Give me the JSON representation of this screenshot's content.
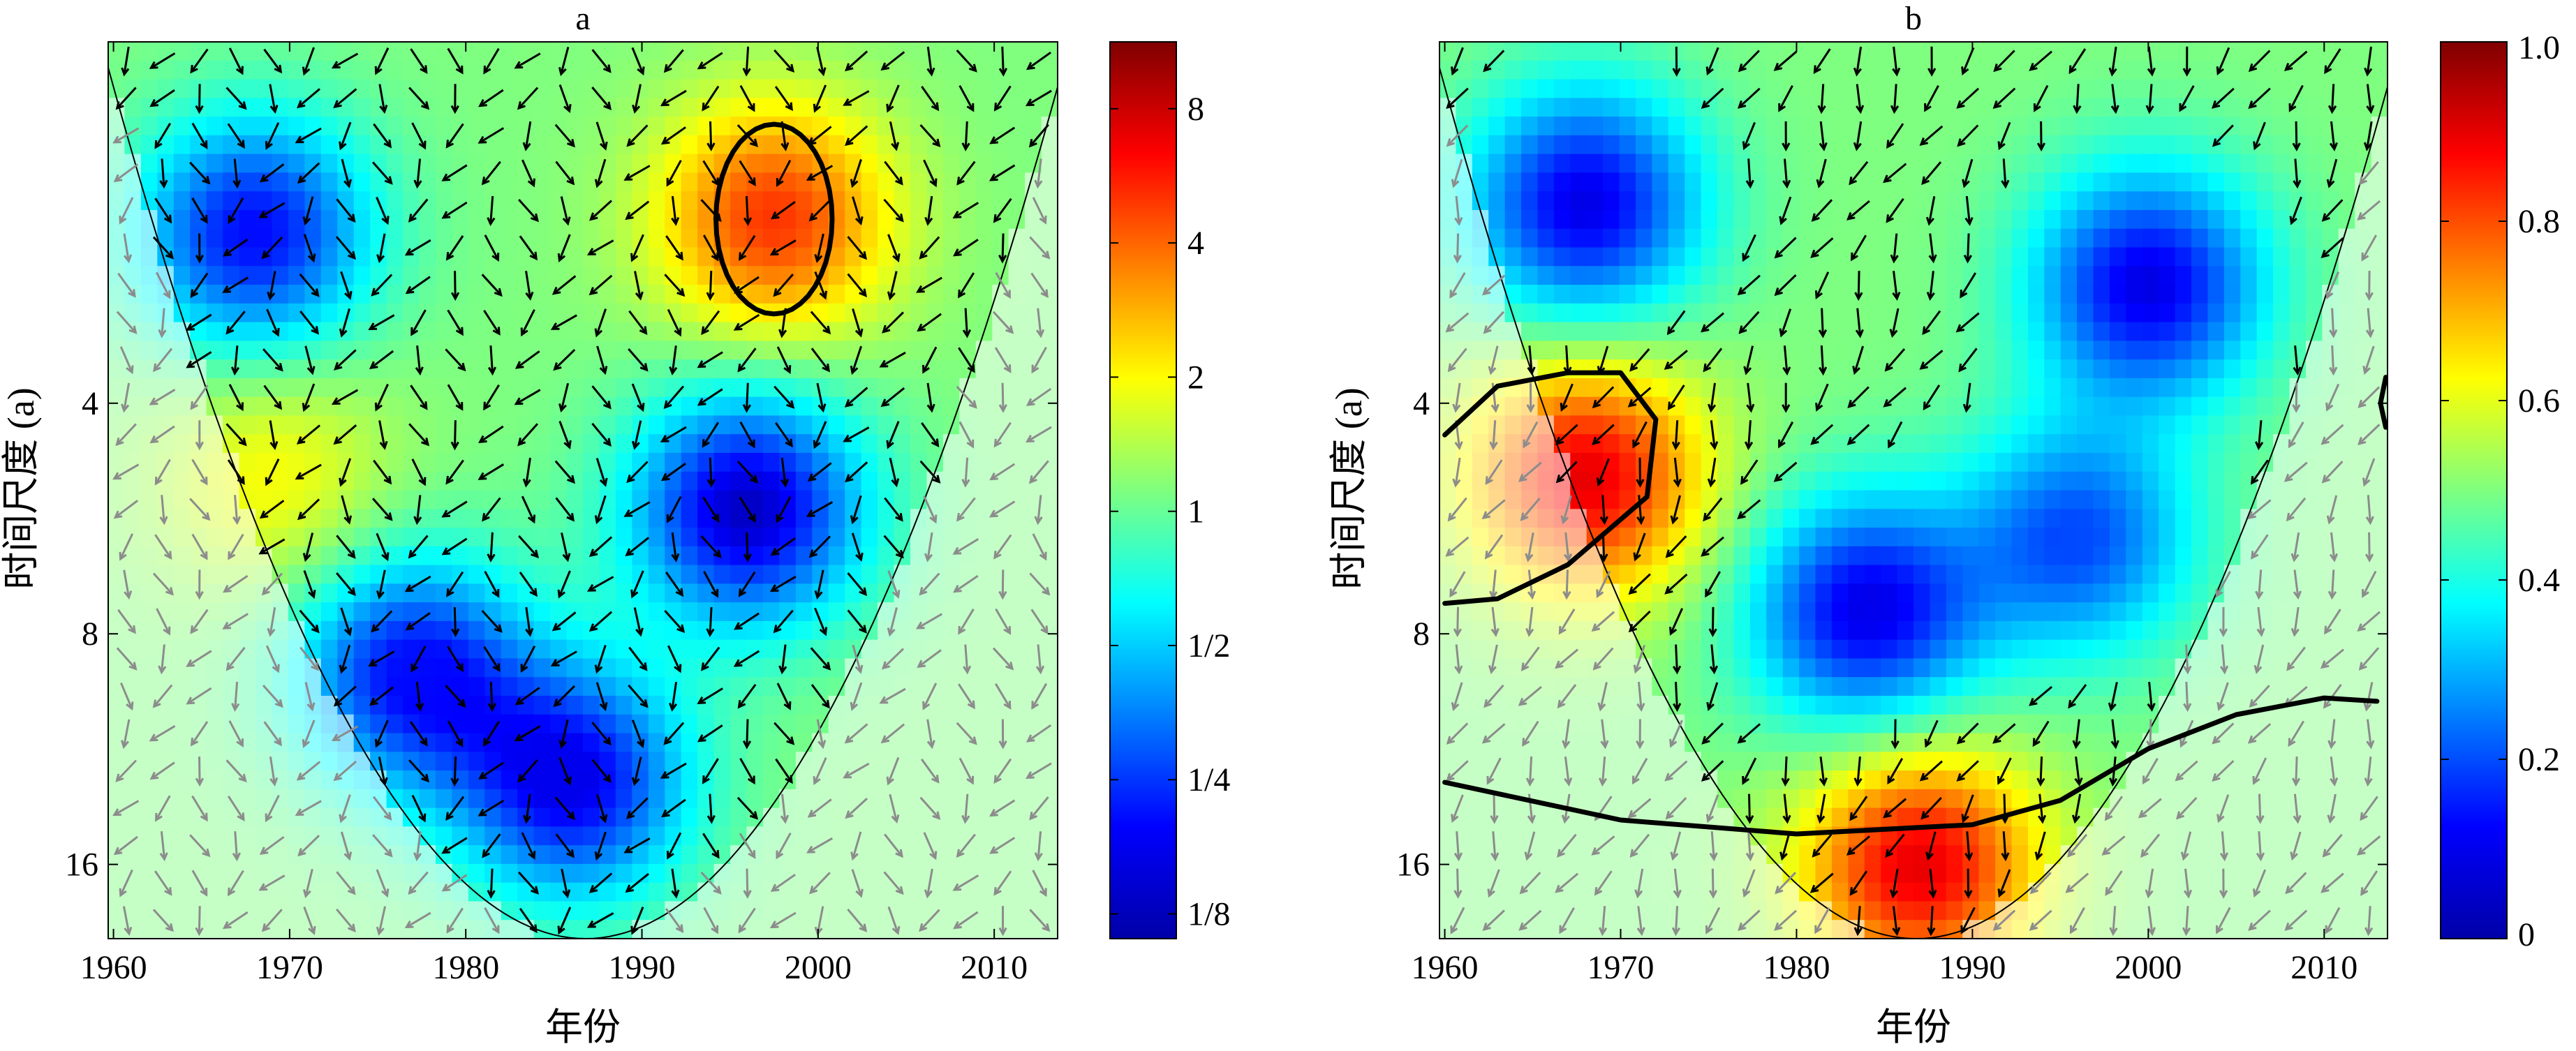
{
  "chart_data": [
    {
      "type": "heatmap",
      "panel": "a",
      "title": "a",
      "xlabel": "年份",
      "ylabel": "时间尺度 (a)",
      "x_ticks": [
        1960,
        1970,
        1980,
        1990,
        2000,
        2010
      ],
      "xlim": [
        1959.7,
        2013.6
      ],
      "y_ticks": [
        {
          "value": 4,
          "label": "4"
        },
        {
          "value": 8,
          "label": "8"
        },
        {
          "value": 16,
          "label": "16"
        }
      ],
      "ylim": [
        1.35,
        20
      ],
      "y_scale": "log2-reversed",
      "colorbar": {
        "scale": "log2",
        "ticks": [
          {
            "value": 8,
            "label": "8"
          },
          {
            "value": 4,
            "label": "4"
          },
          {
            "value": 2,
            "label": "2"
          },
          {
            "value": 1,
            "label": "1"
          },
          {
            "value": 0.5,
            "label": "1/2"
          },
          {
            "value": 0.25,
            "label": "1/4"
          },
          {
            "value": 0.125,
            "label": "1/8"
          }
        ],
        "range": [
          0.11,
          11.3
        ]
      },
      "features": [
        {
          "kind": "high",
          "x": 1997.5,
          "y": 2.3,
          "value": 5
        },
        {
          "kind": "high",
          "x": 1969,
          "y": 5.0,
          "value": 2
        },
        {
          "kind": "low",
          "x": 1996,
          "y": 5.5,
          "value": 0.15
        },
        {
          "kind": "low",
          "x": 1968,
          "y": 2.4,
          "value": 0.2
        },
        {
          "kind": "low",
          "x": 1986,
          "y": 12.5,
          "value": 0.18
        },
        {
          "kind": "low",
          "x": 1977,
          "y": 9.0,
          "value": 0.2
        }
      ],
      "significance_contours": [
        {
          "center_x": 1997.5,
          "center_y": 2.3,
          "x_halfwidth": 3.3,
          "y_factor": 1.33
        }
      ],
      "cone_of_influence": {
        "center_year": 1986.8,
        "top_period": 1.35,
        "bottom_period": 20
      }
    },
    {
      "type": "heatmap",
      "panel": "b",
      "title": "b",
      "xlabel": "年份",
      "ylabel": "时间尺度 (a)",
      "x_ticks": [
        1960,
        1970,
        1980,
        1990,
        2000,
        2010
      ],
      "xlim": [
        1959.7,
        2013.6
      ],
      "y_ticks": [
        {
          "value": 4,
          "label": "4"
        },
        {
          "value": 8,
          "label": "8"
        },
        {
          "value": 16,
          "label": "16"
        }
      ],
      "ylim": [
        1.35,
        20
      ],
      "y_scale": "log2-reversed",
      "colorbar": {
        "scale": "linear",
        "ticks": [
          {
            "value": 1.0,
            "label": "1.0"
          },
          {
            "value": 0.8,
            "label": "0.8"
          },
          {
            "value": 0.6,
            "label": "0.6"
          },
          {
            "value": 0.4,
            "label": "0.4"
          },
          {
            "value": 0.2,
            "label": "0.2"
          },
          {
            "value": 0,
            "label": "0"
          }
        ],
        "range": [
          0,
          1.0
        ]
      },
      "features": [
        {
          "kind": "high",
          "x": 1968,
          "y": 5.0,
          "value": 0.9
        },
        {
          "kind": "high",
          "x": 1987,
          "y": 16.0,
          "value": 0.9
        },
        {
          "kind": "low",
          "x": 1968,
          "y": 2.2,
          "value": 0.1
        },
        {
          "kind": "low",
          "x": 2000,
          "y": 2.8,
          "value": 0.1
        },
        {
          "kind": "low",
          "x": 1984,
          "y": 7.5,
          "value": 0.1
        },
        {
          "kind": "low",
          "x": 1996,
          "y": 6.0,
          "value": 0.2
        }
      ],
      "significance_contours": [
        {
          "description": "left blob",
          "points": [
            [
              1960,
              4.4
            ],
            [
              1963,
              3.8
            ],
            [
              1967,
              3.65
            ],
            [
              1970,
              3.65
            ],
            [
              1972,
              4.2
            ],
            [
              1971.5,
              5.3
            ],
            [
              1967,
              6.5
            ],
            [
              1963,
              7.2
            ],
            [
              1960,
              7.3
            ]
          ]
        },
        {
          "description": "lower boundary",
          "points": [
            [
              1960,
              12.5
            ],
            [
              1970,
              14.0
            ],
            [
              1980,
              14.6
            ],
            [
              1990,
              14.2
            ],
            [
              1995,
              13.2
            ],
            [
              2000,
              11.3
            ],
            [
              2005,
              10.2
            ],
            [
              2010,
              9.7
            ],
            [
              2013,
              9.8
            ]
          ]
        },
        {
          "description": "right edge",
          "points": [
            [
              2013.5,
              3.7
            ],
            [
              2013.2,
              4.0
            ],
            [
              2013.5,
              4.3
            ]
          ]
        }
      ],
      "cone_of_influence": {
        "center_year": 1986.8,
        "top_period": 1.35,
        "bottom_period": 20
      }
    }
  ]
}
